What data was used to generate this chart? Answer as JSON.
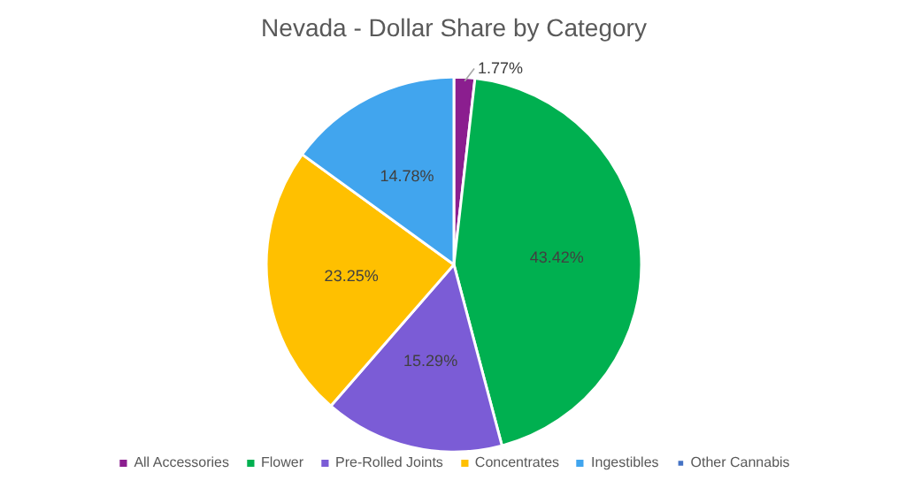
{
  "chart_data": {
    "type": "pie",
    "title": "Nevada - Dollar Share by Category",
    "categories": [
      "All Accessories",
      "Flower",
      "Pre-Rolled Joints",
      "Concentrates",
      "Ingestibles",
      "Other Cannabis"
    ],
    "values": [
      1.77,
      43.42,
      15.29,
      23.25,
      14.78,
      0
    ],
    "value_labels": [
      "1.77%",
      "43.42%",
      "15.29%",
      "23.25%",
      "14.78%",
      null
    ],
    "colors": [
      "#8b1e8f",
      "#00b050",
      "#7b5cd6",
      "#ffc000",
      "#41a5ee",
      "#4472c4"
    ],
    "legend": "bottom"
  }
}
